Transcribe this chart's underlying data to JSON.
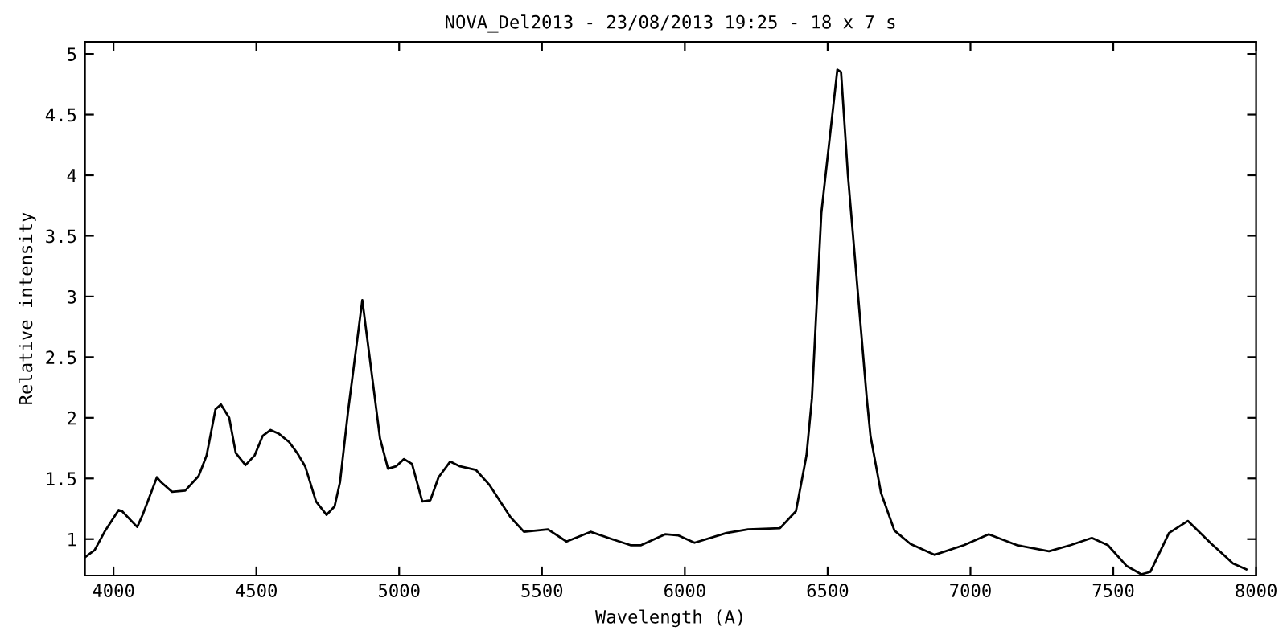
{
  "chart_data": {
    "type": "line",
    "title": "NOVA_Del2013 - 23/08/2013 19:25 - 18 x 7 s",
    "xlabel": "Wavelength (A)",
    "ylabel": "Relative intensity",
    "xlim": [
      3900,
      8000
    ],
    "xticks": [
      4000,
      4500,
      5000,
      5500,
      6000,
      6500,
      7000,
      7500,
      8000
    ],
    "ylim": [
      0.7,
      5.1
    ],
    "yticks": [
      1,
      1.5,
      2,
      2.5,
      3,
      3.5,
      4,
      4.5,
      5
    ],
    "grid": false,
    "legend": false,
    "marker": "none",
    "line_style": "solid",
    "series": [
      {
        "color": "#000000",
        "x": [
          3900,
          3934,
          3971,
          4018,
          4030,
          4083,
          4102,
          4152,
          4166,
          4205,
          4251,
          4298,
          4326,
          4357,
          4376,
          4405,
          4428,
          4462,
          4494,
          4522,
          4550,
          4578,
          4615,
          4643,
          4671,
          4709,
          4746,
          4774,
          4793,
          4821,
          4871,
          4914,
          4933,
          4961,
          4989,
          5017,
          5045,
          5081,
          5109,
          5138,
          5179,
          5213,
          5269,
          5315,
          5390,
          5437,
          5521,
          5586,
          5670,
          5745,
          5810,
          5847,
          5931,
          5978,
          6034,
          6146,
          6221,
          6333,
          6389,
          6426,
          6445,
          6478,
          6534,
          6547,
          6571,
          6637,
          6650,
          6687,
          6734,
          6790,
          6874,
          6977,
          7064,
          7163,
          7275,
          7350,
          7425,
          7481,
          7546,
          7598,
          7630,
          7695,
          7761,
          7844,
          7919,
          7966
        ],
        "values": [
          0.85,
          0.91,
          1.07,
          1.24,
          1.23,
          1.1,
          1.2,
          1.51,
          1.47,
          1.39,
          1.4,
          1.52,
          1.69,
          2.07,
          2.11,
          2.0,
          1.71,
          1.61,
          1.69,
          1.85,
          1.9,
          1.87,
          1.8,
          1.71,
          1.6,
          1.31,
          1.2,
          1.27,
          1.47,
          2.05,
          2.97,
          2.18,
          1.83,
          1.58,
          1.6,
          1.66,
          1.62,
          1.31,
          1.32,
          1.51,
          1.64,
          1.6,
          1.57,
          1.45,
          1.18,
          1.06,
          1.08,
          0.98,
          1.06,
          1.0,
          0.95,
          0.95,
          1.04,
          1.03,
          0.97,
          1.05,
          1.08,
          1.09,
          1.23,
          1.69,
          2.16,
          3.69,
          4.87,
          4.85,
          4.0,
          2.16,
          1.85,
          1.38,
          1.07,
          0.96,
          0.87,
          0.95,
          1.04,
          0.95,
          0.9,
          0.95,
          1.01,
          0.95,
          0.78,
          0.71,
          0.73,
          1.05,
          1.15,
          0.96,
          0.8,
          0.75
        ]
      }
    ]
  }
}
